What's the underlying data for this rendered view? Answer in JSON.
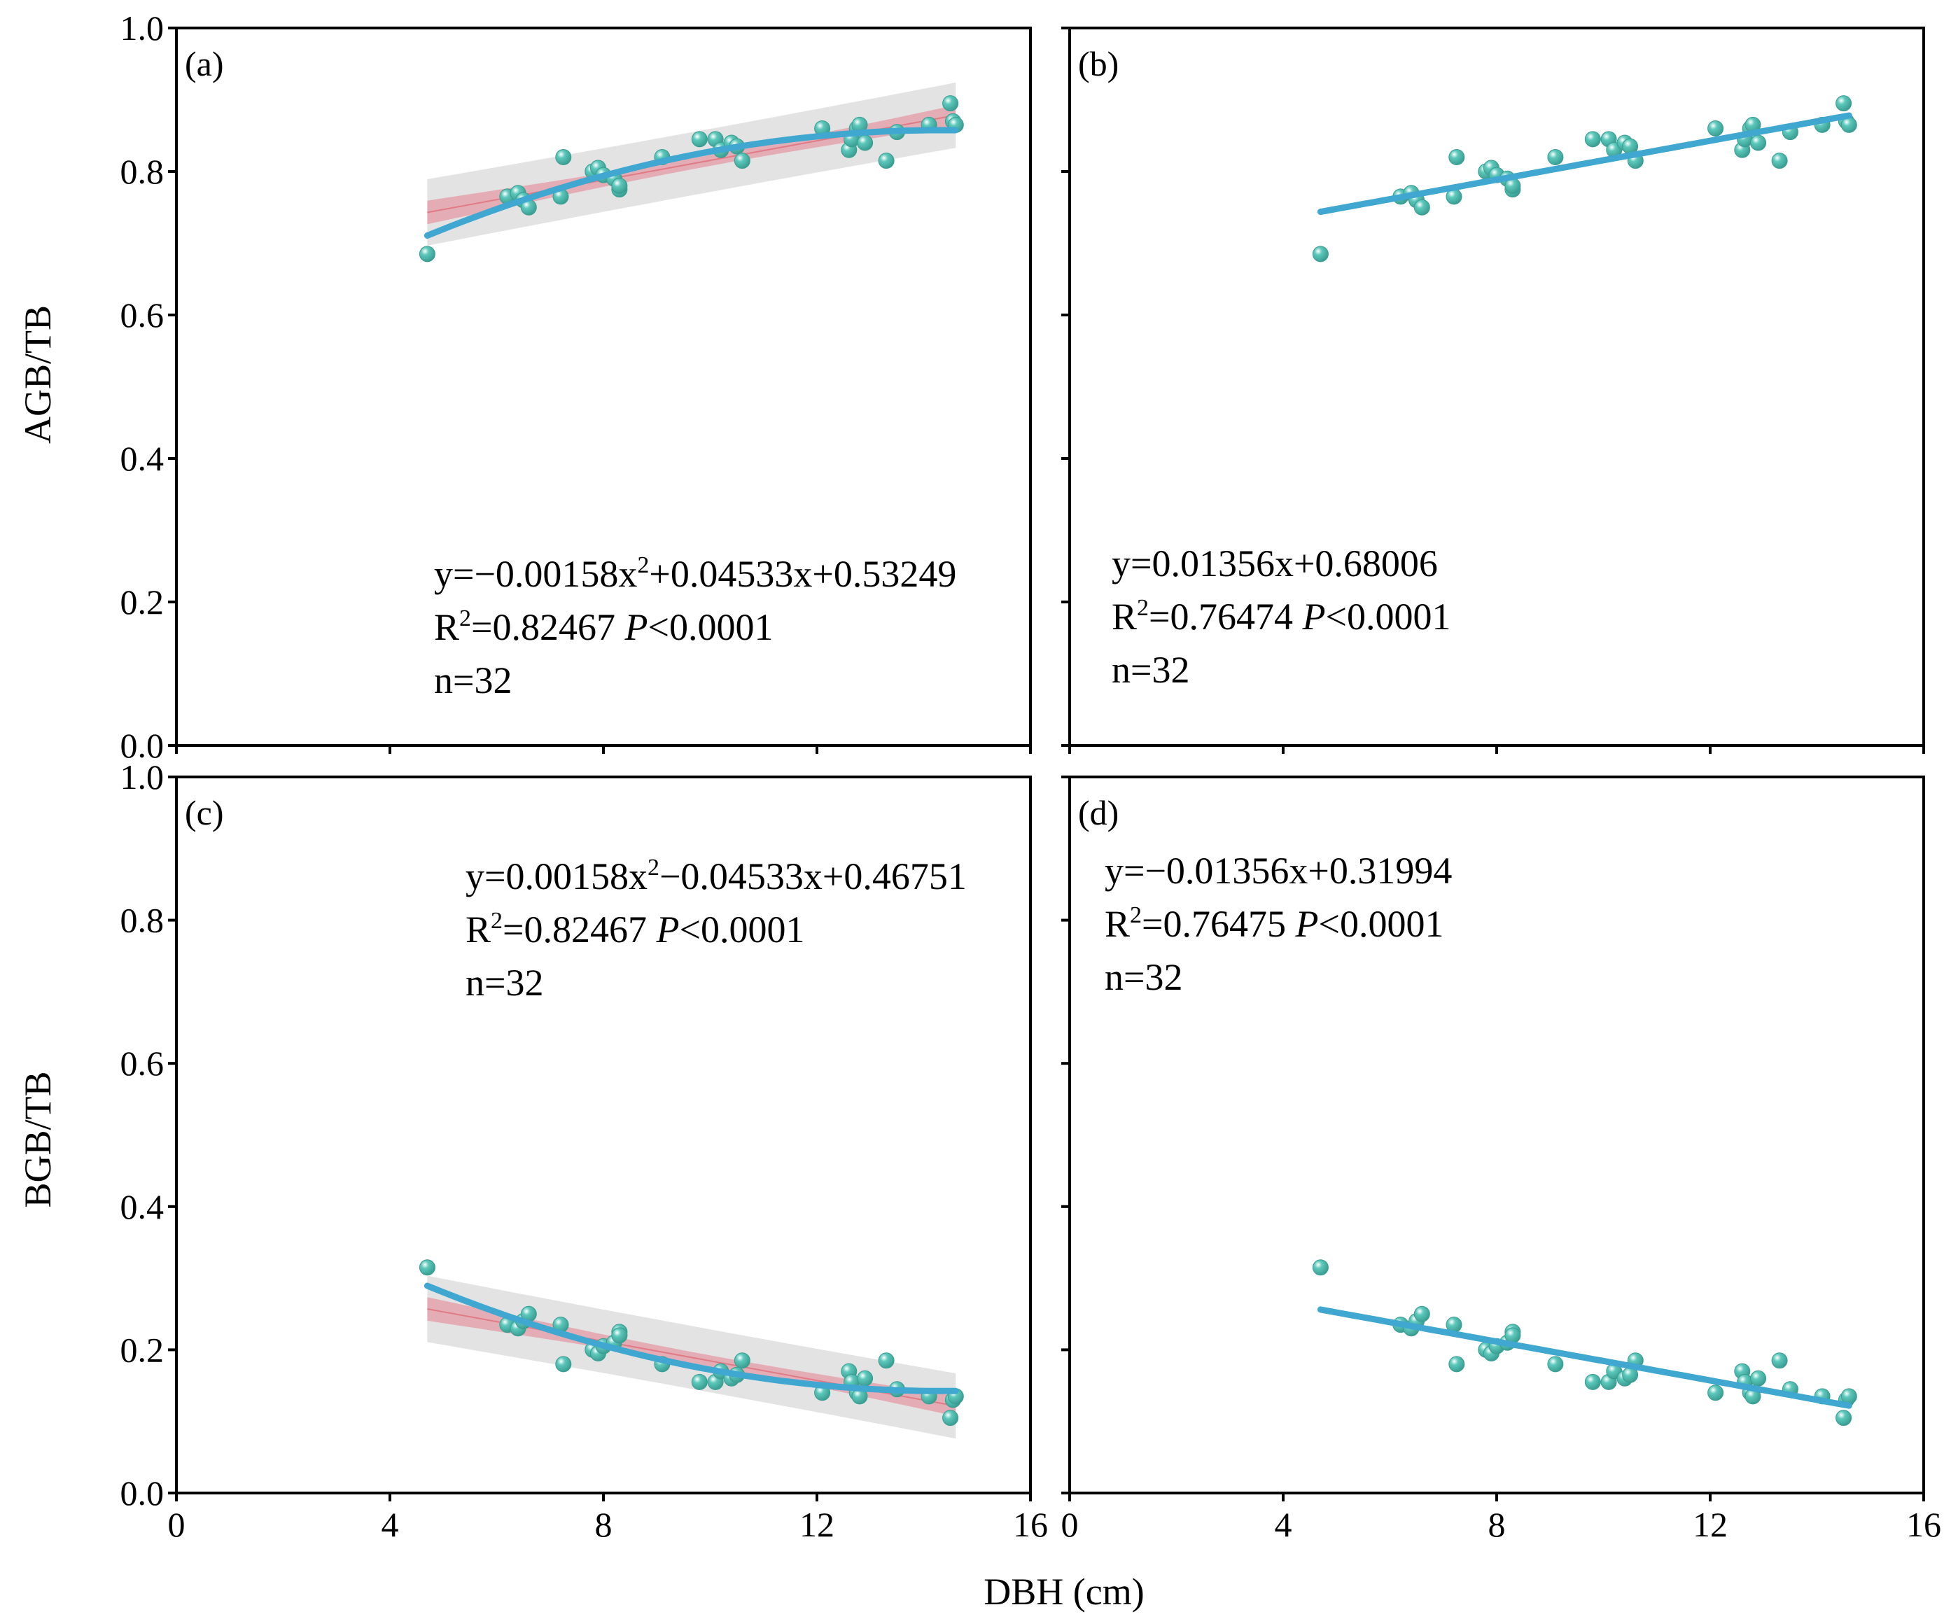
{
  "colors": {
    "line": "#3fa7d0",
    "points": "#5cc8bb",
    "ci_band": "#e4a2ad",
    "pred_band": "#e3e3e3",
    "raw_fit": "#e07b86",
    "axis": "#000000"
  },
  "figure": {
    "xlabel": "DBH (cm)",
    "ylabel_top": "AGB/TB",
    "ylabel_bottom": "BGB/TB"
  },
  "chart_data": [
    {
      "panel": "(a)",
      "type": "scatter",
      "fit": "quadratic",
      "coef": [
        -0.00158,
        0.04533,
        0.53249
      ],
      "bands": true,
      "xlim": [
        0,
        16
      ],
      "ylim": [
        0,
        1
      ],
      "xticks": [
        "0",
        "4",
        "8",
        "12",
        "16"
      ],
      "yticks": [
        "0.0",
        "0.2",
        "0.4",
        "0.6",
        "0.8",
        "1.0"
      ],
      "x": [
        4.7,
        6.2,
        6.4,
        6.5,
        6.6,
        7.2,
        7.25,
        7.8,
        7.9,
        8.0,
        8.2,
        8.3,
        8.3,
        9.1,
        9.8,
        10.1,
        10.2,
        10.4,
        10.5,
        10.6,
        12.1,
        12.6,
        12.65,
        12.75,
        12.8,
        12.9,
        13.3,
        13.5,
        14.1,
        14.5,
        14.55,
        14.6
      ],
      "y": [
        0.685,
        0.765,
        0.77,
        0.76,
        0.75,
        0.765,
        0.82,
        0.8,
        0.805,
        0.795,
        0.79,
        0.775,
        0.78,
        0.82,
        0.845,
        0.845,
        0.83,
        0.84,
        0.835,
        0.815,
        0.86,
        0.83,
        0.845,
        0.86,
        0.865,
        0.84,
        0.815,
        0.855,
        0.865,
        0.895,
        0.87,
        0.865
      ],
      "equation": [
        "y=−0.00158x",
        "2",
        "+0.04533x+0.53249"
      ],
      "r2": [
        "R",
        "2",
        "=0.82467 ",
        "P",
        "<0.0001"
      ],
      "n": "n=32"
    },
    {
      "panel": "(b)",
      "type": "scatter",
      "fit": "linear",
      "coef": [
        0,
        0.01356,
        0.68006
      ],
      "bands": false,
      "xlim": [
        0,
        16
      ],
      "ylim": [
        0,
        1
      ],
      "xticks": [
        "0",
        "4",
        "8",
        "12",
        "16"
      ],
      "yticks": [
        "0.0",
        "0.2",
        "0.4",
        "0.6",
        "0.8",
        "1.0"
      ],
      "x": [
        4.7,
        6.2,
        6.4,
        6.5,
        6.6,
        7.2,
        7.25,
        7.8,
        7.9,
        8.0,
        8.2,
        8.3,
        8.3,
        9.1,
        9.8,
        10.1,
        10.2,
        10.4,
        10.5,
        10.6,
        12.1,
        12.6,
        12.65,
        12.75,
        12.8,
        12.9,
        13.3,
        13.5,
        14.1,
        14.5,
        14.55,
        14.6
      ],
      "y": [
        0.685,
        0.765,
        0.77,
        0.76,
        0.75,
        0.765,
        0.82,
        0.8,
        0.805,
        0.795,
        0.79,
        0.775,
        0.78,
        0.82,
        0.845,
        0.845,
        0.83,
        0.84,
        0.835,
        0.815,
        0.86,
        0.83,
        0.845,
        0.86,
        0.865,
        0.84,
        0.815,
        0.855,
        0.865,
        0.895,
        0.87,
        0.865
      ],
      "equation": [
        "y=0.01356x+0.68006",
        "",
        ""
      ],
      "r2": [
        "R",
        "2",
        "=0.76474 ",
        "P",
        "<0.0001"
      ],
      "n": "n=32"
    },
    {
      "panel": "(c)",
      "type": "scatter",
      "fit": "quadratic",
      "coef": [
        0.00158,
        -0.04533,
        0.46751
      ],
      "bands": true,
      "xlim": [
        0,
        16
      ],
      "ylim": [
        0,
        1
      ],
      "xticks": [
        "0",
        "4",
        "8",
        "12",
        "16"
      ],
      "yticks": [
        "0.0",
        "0.2",
        "0.4",
        "0.6",
        "0.8",
        "1.0"
      ],
      "x": [
        4.7,
        6.2,
        6.4,
        6.5,
        6.6,
        7.2,
        7.25,
        7.8,
        7.9,
        8.0,
        8.2,
        8.3,
        8.3,
        9.1,
        9.8,
        10.1,
        10.2,
        10.4,
        10.5,
        10.6,
        12.1,
        12.6,
        12.65,
        12.75,
        12.8,
        12.9,
        13.3,
        13.5,
        14.1,
        14.5,
        14.55,
        14.6
      ],
      "y": [
        0.315,
        0.235,
        0.23,
        0.24,
        0.25,
        0.235,
        0.18,
        0.2,
        0.195,
        0.205,
        0.21,
        0.225,
        0.22,
        0.18,
        0.155,
        0.155,
        0.17,
        0.16,
        0.165,
        0.185,
        0.14,
        0.17,
        0.155,
        0.14,
        0.135,
        0.16,
        0.185,
        0.145,
        0.135,
        0.105,
        0.13,
        0.135
      ],
      "equation": [
        "y=0.00158x",
        "2",
        "−0.04533x+0.46751"
      ],
      "r2": [
        "R",
        "2",
        "=0.82467 ",
        "P",
        "<0.0001"
      ],
      "n": "n=32"
    },
    {
      "panel": "(d)",
      "type": "scatter",
      "fit": "linear",
      "coef": [
        0,
        -0.01356,
        0.31994
      ],
      "bands": false,
      "xlim": [
        0,
        16
      ],
      "ylim": [
        0,
        1
      ],
      "xticks": [
        "0",
        "4",
        "8",
        "12",
        "16"
      ],
      "yticks": [
        "0.0",
        "0.2",
        "0.4",
        "0.6",
        "0.8",
        "1.0"
      ],
      "x": [
        4.7,
        6.2,
        6.4,
        6.5,
        6.6,
        7.2,
        7.25,
        7.8,
        7.9,
        8.0,
        8.2,
        8.3,
        8.3,
        9.1,
        9.8,
        10.1,
        10.2,
        10.4,
        10.5,
        10.6,
        12.1,
        12.6,
        12.65,
        12.75,
        12.8,
        12.9,
        13.3,
        13.5,
        14.1,
        14.5,
        14.55,
        14.6
      ],
      "y": [
        0.315,
        0.235,
        0.23,
        0.24,
        0.25,
        0.235,
        0.18,
        0.2,
        0.195,
        0.205,
        0.21,
        0.225,
        0.22,
        0.18,
        0.155,
        0.155,
        0.17,
        0.16,
        0.165,
        0.185,
        0.14,
        0.17,
        0.155,
        0.14,
        0.135,
        0.16,
        0.185,
        0.145,
        0.135,
        0.105,
        0.13,
        0.135
      ],
      "equation": [
        "y=−0.01356x+0.31994",
        "",
        ""
      ],
      "r2": [
        "R",
        "2",
        "=0.76475 ",
        "P",
        "<0.0001"
      ],
      "n": "n=32"
    }
  ]
}
